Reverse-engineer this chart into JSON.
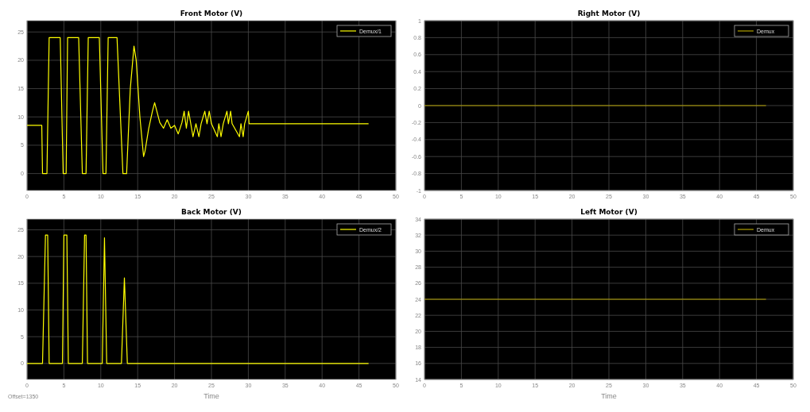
{
  "chart_data": [
    {
      "type": "line",
      "title": "Front Motor (V)",
      "xlim": [
        0,
        50
      ],
      "ylim": [
        -3,
        27
      ],
      "xticks": [
        0,
        5,
        10,
        15,
        20,
        25,
        30,
        35,
        40,
        45,
        50
      ],
      "yticks": [
        0,
        5,
        10,
        15,
        20,
        25
      ],
      "grid": true,
      "legend": "top right",
      "series": [
        {
          "name": "Demux/1",
          "color": "#ffff00",
          "x": [
            0,
            2,
            2.1,
            2.7,
            3.0,
            4.5,
            4.9,
            5.3,
            5.5,
            7.0,
            7.5,
            8.0,
            8.3,
            9.8,
            10.3,
            10.7,
            11.0,
            12.2,
            13.0,
            13.5,
            14.0,
            14.5,
            14.8,
            15.3,
            15.8,
            16.0,
            16.5,
            17.0,
            17.3,
            17.6,
            18,
            18.5,
            19,
            19.5,
            20,
            20.5,
            21,
            21.3,
            21.6,
            21.9,
            22.2,
            22.5,
            22.9,
            23.3,
            23.6,
            24.1,
            24.4,
            24.7,
            25,
            25.8,
            26,
            26.3,
            26.6,
            27.1,
            27.3,
            27.6,
            27.8,
            28.8,
            29,
            29.3,
            29.5,
            30,
            30.1,
            46.3
          ],
          "values": [
            8.5,
            8.5,
            0,
            0,
            24,
            24,
            0,
            0,
            24,
            24,
            0,
            0,
            24,
            24,
            0,
            0,
            24,
            24,
            0,
            0,
            15,
            22.5,
            20,
            10,
            3,
            4,
            8,
            11,
            12.5,
            11,
            9,
            8,
            9.5,
            8,
            8.5,
            7,
            9,
            11,
            8,
            11,
            8.8,
            6.5,
            8.8,
            6.5,
            8.8,
            11,
            8.8,
            11,
            8.8,
            6.5,
            8.8,
            6.5,
            8.8,
            11,
            8.8,
            11,
            8.8,
            6.5,
            8.8,
            6.5,
            8.8,
            11,
            8.8,
            8.8
          ]
        }
      ]
    },
    {
      "type": "line",
      "title": "Right Motor (V)",
      "xlim": [
        0,
        50
      ],
      "ylim": [
        -1,
        1
      ],
      "xticks": [
        0,
        5,
        10,
        15,
        20,
        25,
        30,
        35,
        40,
        45,
        50
      ],
      "yticks": [
        -1,
        -0.8,
        -0.6,
        -0.4,
        -0.2,
        0,
        0.2,
        0.4,
        0.6,
        0.8,
        1
      ],
      "grid": true,
      "legend": "top right",
      "series": [
        {
          "name": "Demux",
          "color": "#b3a200",
          "x": [
            0,
            46.3
          ],
          "values": [
            0,
            0
          ]
        }
      ]
    },
    {
      "type": "line",
      "title": "Back Motor (V)",
      "xlabel": "Time",
      "annotations": [
        "Offset=1350"
      ],
      "xlim": [
        0,
        50
      ],
      "ylim": [
        -3,
        27
      ],
      "xticks": [
        0,
        5,
        10,
        15,
        20,
        25,
        30,
        35,
        40,
        45,
        50
      ],
      "yticks": [
        0,
        5,
        10,
        15,
        20,
        25
      ],
      "grid": true,
      "legend": "top right",
      "series": [
        {
          "name": "Demux/2",
          "color": "#ffff00",
          "x": [
            0,
            2.1,
            2.5,
            2.8,
            3.0,
            4.8,
            5.0,
            5.4,
            5.6,
            7.5,
            7.8,
            8.0,
            8.2,
            10.2,
            10.5,
            10.8,
            12.8,
            13.2,
            13.6,
            46.3
          ],
          "values": [
            0,
            0,
            24,
            24,
            0,
            0,
            24,
            24,
            0,
            0,
            24,
            24,
            0,
            0,
            23.5,
            0,
            0,
            16,
            0,
            0
          ]
        }
      ]
    },
    {
      "type": "line",
      "title": "Left Motor (V)",
      "xlabel": "Time",
      "xlim": [
        0,
        50
      ],
      "ylim": [
        14,
        34
      ],
      "xticks": [
        0,
        5,
        10,
        15,
        20,
        25,
        30,
        35,
        40,
        45,
        50
      ],
      "yticks": [
        14,
        16,
        18,
        20,
        22,
        24,
        26,
        28,
        30,
        32,
        34
      ],
      "grid": true,
      "legend": "top right",
      "series": [
        {
          "name": "Demux",
          "color": "#b3a200",
          "x": [
            0,
            46.3
          ],
          "values": [
            24,
            24
          ]
        }
      ]
    }
  ]
}
